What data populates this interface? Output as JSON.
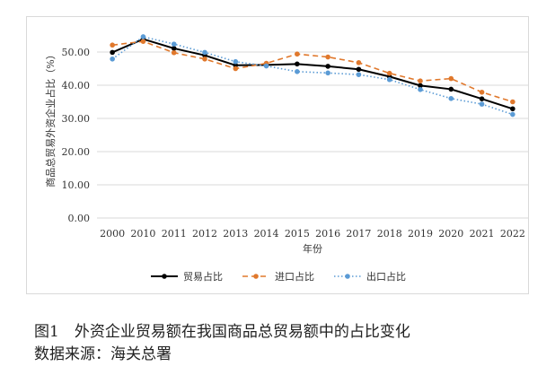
{
  "figure": {
    "caption": "图1　外资企业贸易额在我国商品总贸易额中的占比变化",
    "source": "数据来源：海关总署"
  },
  "chart_data": {
    "type": "line",
    "title": "",
    "xlabel": "年份",
    "ylabel": "商品总贸易外资企业占比（%）",
    "categories": [
      "2000",
      "2010",
      "2011",
      "2012",
      "2013",
      "2014",
      "2015",
      "2016",
      "2017",
      "2018",
      "2019",
      "2020",
      "2021",
      "2022"
    ],
    "ylim": [
      0,
      60
    ],
    "yticks": [
      "0.00",
      "10.00",
      "20.00",
      "30.00",
      "40.00",
      "50.00"
    ],
    "grid": true,
    "legend_position": "bottom",
    "series": [
      {
        "name": "贸易占比",
        "color": "#000000",
        "dash": "solid",
        "marker": "circle",
        "values": [
          49.9,
          53.9,
          51.1,
          49.0,
          46.0,
          46.1,
          46.4,
          45.7,
          44.8,
          42.6,
          39.9,
          38.8,
          35.9,
          32.9
        ]
      },
      {
        "name": "进口占比",
        "color": "#e0782c",
        "dash": "dashed",
        "marker": "circle",
        "values": [
          52.1,
          53.2,
          49.8,
          47.9,
          45.0,
          46.6,
          49.4,
          48.5,
          46.8,
          43.6,
          41.3,
          42.0,
          37.9,
          35.0
        ]
      },
      {
        "name": "出口占比",
        "color": "#5b9bd5",
        "dash": "dotted",
        "marker": "circle",
        "values": [
          47.9,
          54.6,
          52.4,
          49.9,
          47.1,
          45.8,
          44.1,
          43.7,
          43.2,
          41.7,
          38.7,
          36.0,
          34.3,
          31.2
        ]
      }
    ]
  }
}
